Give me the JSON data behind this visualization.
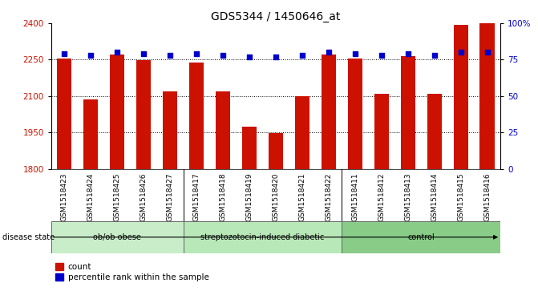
{
  "title": "GDS5344 / 1450646_at",
  "samples": [
    "GSM1518423",
    "GSM1518424",
    "GSM1518425",
    "GSM1518426",
    "GSM1518427",
    "GSM1518417",
    "GSM1518418",
    "GSM1518419",
    "GSM1518420",
    "GSM1518421",
    "GSM1518422",
    "GSM1518411",
    "GSM1518412",
    "GSM1518413",
    "GSM1518414",
    "GSM1518415",
    "GSM1518416"
  ],
  "counts": [
    2255,
    2085,
    2270,
    2248,
    2118,
    2238,
    2118,
    1975,
    1948,
    2100,
    2270,
    2255,
    2110,
    2265,
    2108,
    2395,
    2400
  ],
  "percentile_ranks": [
    79,
    78,
    80,
    79,
    78,
    79,
    78,
    77,
    77,
    78,
    80,
    79,
    78,
    79,
    78,
    80,
    80
  ],
  "groups": [
    {
      "name": "ob/ob obese",
      "count": 5
    },
    {
      "name": "streptozotocin-induced diabetic",
      "count": 6
    },
    {
      "name": "control",
      "count": 6
    }
  ],
  "group_colors": [
    "#c8edc8",
    "#b8e8b8",
    "#88cc88"
  ],
  "bar_color": "#cc1100",
  "dot_color": "#0000cc",
  "ylim_left": [
    1800,
    2400
  ],
  "ylim_right": [
    0,
    100
  ],
  "yticks_left": [
    1800,
    1950,
    2100,
    2250,
    2400
  ],
  "yticks_right": [
    0,
    25,
    50,
    75,
    100
  ],
  "plot_bg": "#ffffff",
  "label_bg": "#d8d8d8",
  "grid_color": "#000000",
  "title_fontsize": 10,
  "tick_fontsize": 6.5,
  "label_fontsize": 7.5
}
